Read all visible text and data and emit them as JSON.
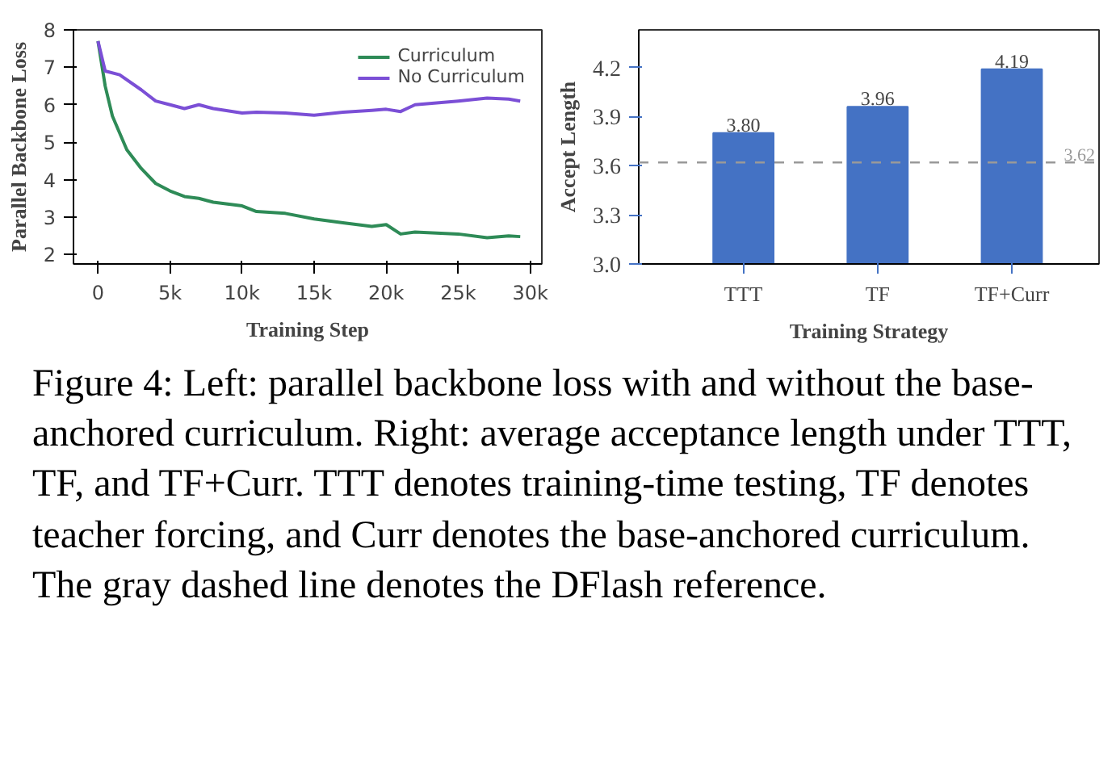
{
  "chart_data": [
    {
      "type": "line",
      "xlabel": "Training Step",
      "ylabel": "Parallel Backbone Loss",
      "xlim": [
        -1700,
        30800
      ],
      "ylim": [
        1.75,
        8
      ],
      "xticks": [
        0,
        {
          "value": 5000,
          "label": "5k"
        },
        {
          "value": 10000,
          "label": "10k"
        },
        {
          "value": 15000,
          "label": "15k"
        },
        {
          "value": 20000,
          "label": "20k"
        },
        {
          "value": 25000,
          "label": "25k"
        },
        {
          "value": 30000,
          "label": "30k"
        }
      ],
      "yticks": [
        2,
        3,
        4,
        5,
        6,
        7,
        8
      ],
      "grid": false,
      "legend": "top right",
      "series": [
        {
          "name": "Curriculum",
          "color": "#2e8b57",
          "x": [
            0,
            500,
            1000,
            2000,
            3000,
            4000,
            5000,
            6000,
            7000,
            8000,
            10000,
            11000,
            13000,
            15000,
            17000,
            19000,
            20000,
            21000,
            22000,
            25000,
            27000,
            28500,
            29300
          ],
          "values": [
            7.7,
            6.5,
            5.7,
            4.8,
            4.3,
            3.9,
            3.7,
            3.55,
            3.5,
            3.4,
            3.3,
            3.15,
            3.1,
            2.95,
            2.85,
            2.75,
            2.8,
            2.55,
            2.6,
            2.55,
            2.45,
            2.5,
            2.48
          ]
        },
        {
          "name": "No Curriculum",
          "color": "#7b4fd6",
          "x": [
            0,
            500,
            1500,
            3000,
            4000,
            5000,
            6000,
            7000,
            8000,
            10000,
            11000,
            13000,
            15000,
            17000,
            19000,
            20000,
            21000,
            22000,
            25000,
            27000,
            28500,
            29300
          ],
          "values": [
            7.7,
            6.9,
            6.8,
            6.4,
            6.1,
            6.0,
            5.9,
            6.0,
            5.9,
            5.78,
            5.8,
            5.78,
            5.72,
            5.8,
            5.85,
            5.88,
            5.82,
            6.0,
            6.1,
            6.18,
            6.15,
            6.1
          ]
        }
      ]
    },
    {
      "type": "bar",
      "xlabel": "Training Strategy",
      "ylabel": "Accept Length",
      "categories": [
        "TTT",
        "TF",
        "TF+Curr"
      ],
      "values": [
        3.8,
        3.96,
        4.19
      ],
      "value_labels": [
        "3.80",
        "3.96",
        "4.19"
      ],
      "color": "#4472c4",
      "ylim": [
        3.0,
        4.43
      ],
      "yticks": [
        {
          "value": 3.0,
          "label": "3.0"
        },
        3.3,
        3.6,
        3.9,
        4.2
      ],
      "grid": false,
      "ref_lines": [
        {
          "axis": "y",
          "value": 3.62,
          "label": "3.62",
          "color": "#999999",
          "line_style": "dashed"
        }
      ],
      "annotations": [
        "Figure 4: Left: parallel backbone loss with and without the base-anchored curriculum. Right: average acceptance length under TTT, TF, and TF+Curr. TTT denotes training-time testing, TF denotes teacher forcing, and Curr denotes the base-anchored curriculum. The gray dashed line denotes the DFlash reference."
      ]
    }
  ]
}
